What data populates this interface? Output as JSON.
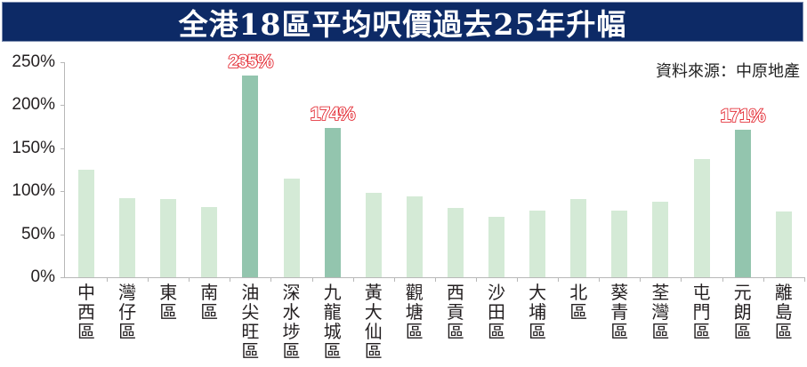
{
  "header": {
    "title": "全港18區平均呎價過去25年升幅",
    "source": "資料來源：中原地產"
  },
  "colors": {
    "title_bg": "#0d2a66",
    "bar_normal": "#d4ead6",
    "bar_highlight": "#93c5ae",
    "label_red": "#e0141e"
  },
  "chart_data": {
    "type": "bar",
    "title": "全港18區平均呎價過去25年升幅",
    "subtitle": "資料來源：中原地產",
    "xlabel": "",
    "ylabel": "",
    "ylim": [
      0,
      250
    ],
    "yticks": [
      "0%",
      "50%",
      "100%",
      "150%",
      "200%",
      "250%"
    ],
    "grid": false,
    "legend": null,
    "categories": [
      "中西區",
      "灣仔區",
      "東區",
      "南區",
      "油尖旺區",
      "深水埗區",
      "九龍城區",
      "黃大仙區",
      "觀塘區",
      "西貢區",
      "沙田區",
      "大埔區",
      "北區",
      "葵青區",
      "荃灣區",
      "屯門區",
      "元朗區",
      "離島區"
    ],
    "values": [
      125,
      92,
      91,
      82,
      235,
      115,
      174,
      98,
      94,
      81,
      70,
      77,
      91,
      77,
      88,
      137,
      171,
      76
    ],
    "unit": "%",
    "highlighted": [
      {
        "category": "油尖旺區",
        "label": "235%"
      },
      {
        "category": "九龍城區",
        "label": "174%"
      },
      {
        "category": "元朗區",
        "label": "171%"
      }
    ]
  }
}
